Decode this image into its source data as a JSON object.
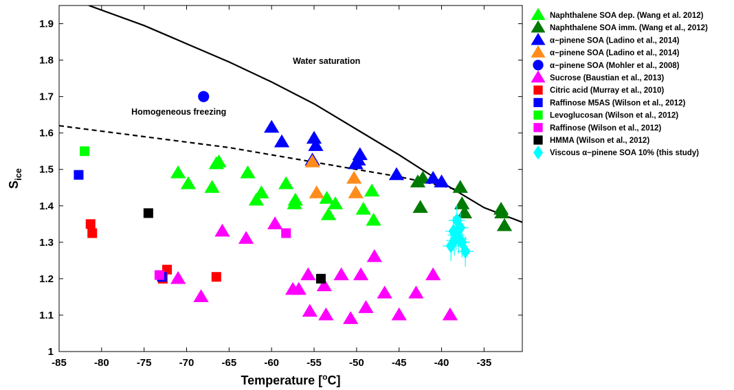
{
  "chart_data": {
    "type": "scatter",
    "xlabel": "Temperature [",
    "xlabel_unit": "o",
    "xlabel_end": "C]",
    "ylabel_main": "S",
    "ylabel_sub": "ice",
    "xlim": [
      -85,
      -30.5
    ],
    "ylim": [
      1.0,
      1.95
    ],
    "xticks": [
      "-85",
      "-80",
      "-75",
      "-70",
      "-65",
      "-60",
      "-55",
      "-50",
      "-45",
      "-40",
      "-35"
    ],
    "yticks": [
      "1",
      "1.1",
      "1.2",
      "1.3",
      "1.4",
      "1.5",
      "1.6",
      "1.7",
      "1.8",
      "1.9"
    ],
    "xtick_values": [
      -85,
      -80,
      -75,
      -70,
      -65,
      -60,
      -55,
      -50,
      -45,
      -40,
      -35
    ],
    "ytick_values": [
      1.0,
      1.1,
      1.2,
      1.3,
      1.4,
      1.5,
      1.6,
      1.7,
      1.8,
      1.9
    ],
    "grid": false,
    "legend_position": "outside-right",
    "annotations": [
      {
        "text": "Water saturation",
        "x": -57.5,
        "y": 1.79
      },
      {
        "text": "Homogeneous freezing",
        "x": -76.5,
        "y": 1.65
      }
    ],
    "lines": [
      {
        "name": "Water saturation",
        "style": "solid",
        "x": [
          -81.5,
          -75,
          -70,
          -65,
          -60,
          -55,
          -50,
          -45,
          -40,
          -35,
          -30.5
        ],
        "y": [
          1.95,
          1.895,
          1.845,
          1.795,
          1.74,
          1.68,
          1.61,
          1.54,
          1.465,
          1.395,
          1.355
        ]
      },
      {
        "name": "Homogeneous freezing",
        "style": "dashed",
        "x": [
          -85,
          -80,
          -75,
          -70,
          -65,
          -60,
          -55,
          -50,
          -45,
          -40,
          -37.5
        ],
        "y": [
          1.62,
          1.605,
          1.59,
          1.575,
          1.56,
          1.54,
          1.52,
          1.5,
          1.48,
          1.455,
          1.44
        ]
      }
    ],
    "series": [
      {
        "name": "Naphthalene SOA dep. (Wang et al. 2012)",
        "marker": "triangle",
        "color": "#00ff00",
        "x": [
          -71,
          -69.8,
          -67,
          -66.5,
          -66.2,
          -62.8,
          -61.8,
          -61.2,
          -58.3,
          -57.3,
          -57.2,
          -53.5,
          -53.3,
          -52.5,
          -49.2,
          -48.2,
          -48
        ],
        "y": [
          1.49,
          1.46,
          1.45,
          1.515,
          1.52,
          1.49,
          1.415,
          1.435,
          1.46,
          1.405,
          1.415,
          1.42,
          1.375,
          1.405,
          1.39,
          1.44,
          1.36
        ]
      },
      {
        "name": "Naphthalene SOA imm. (Wang et al., 2012)",
        "marker": "triangle",
        "color": "#007a00",
        "x": [
          -42.8,
          -42.5,
          -42.2,
          -37.8,
          -37.6,
          -37.3,
          -33,
          -32.9,
          -32.6
        ],
        "y": [
          1.465,
          1.395,
          1.475,
          1.45,
          1.405,
          1.38,
          1.39,
          1.38,
          1.345
        ]
      },
      {
        "name": "α−pinene SOA (Ladino et al., 2014)",
        "marker": "triangle",
        "color": "#0000ff",
        "x": [
          -60,
          -58.8,
          -55,
          -54.8,
          -55.2,
          -50.1,
          -49.8,
          -49.6,
          -45.3,
          -41,
          -40
        ],
        "y": [
          1.615,
          1.575,
          1.585,
          1.565,
          1.525,
          1.515,
          1.525,
          1.54,
          1.485,
          1.475,
          1.465
        ]
      },
      {
        "name": "α−pinene SOA (Ladino et al., 2014)",
        "marker": "triangle",
        "color": "#ff8c1a",
        "x": [
          -55.2,
          -54.7,
          -50.3,
          -50.1
        ],
        "y": [
          1.52,
          1.435,
          1.475,
          1.435
        ]
      },
      {
        "name": "α−pinene SOA (Mohler et al., 2008)",
        "marker": "circle",
        "color": "#0000ff",
        "x": [
          -68
        ],
        "y": [
          1.7
        ]
      },
      {
        "name": "Sucrose (Baustian et al., 2013)",
        "marker": "triangle",
        "color": "#ff00ff",
        "x": [
          -71,
          -68.3,
          -65.8,
          -63,
          -59.6,
          -57.5,
          -56.8,
          -55.7,
          -55.5,
          -53.8,
          -53.6,
          -51.8,
          -50.7,
          -49.5,
          -48.9,
          -47.9,
          -46.7,
          -45,
          -43,
          -41,
          -39
        ],
        "y": [
          1.2,
          1.15,
          1.33,
          1.31,
          1.35,
          1.17,
          1.17,
          1.21,
          1.11,
          1.18,
          1.1,
          1.21,
          1.09,
          1.21,
          1.12,
          1.26,
          1.16,
          1.1,
          1.16,
          1.21,
          1.1
        ]
      },
      {
        "name": "Citric acid (Murray et al., 2010)",
        "marker": "square",
        "color": "#ff0000",
        "x": [
          -81.3,
          -81.1,
          -72.8,
          -72.3,
          -66.5
        ],
        "y": [
          1.35,
          1.325,
          1.2,
          1.225,
          1.205
        ]
      },
      {
        "name": "Raffinose M5AS (Wilson et al., 2012)",
        "marker": "square",
        "color": "#0000ff",
        "x": [
          -82.7,
          -72.9
        ],
        "y": [
          1.485,
          1.205
        ]
      },
      {
        "name": "Levoglucosan (Wilson et al., 2012)",
        "marker": "square",
        "color": "#00ff00",
        "x": [
          -82
        ],
        "y": [
          1.55
        ]
      },
      {
        "name": "Raffinose (Wilson et al., 2012)",
        "marker": "square",
        "color": "#ff00ff",
        "x": [
          -73.2,
          -58.3
        ],
        "y": [
          1.21,
          1.325
        ]
      },
      {
        "name": "HMMA (Wilson et al., 2012)",
        "marker": "square",
        "color": "#000000",
        "x": [
          -74.5,
          -54.2
        ],
        "y": [
          1.38,
          1.2
        ]
      },
      {
        "name": "Viscous α−pinene SOA 10% (this study)",
        "marker": "diamond",
        "color": "#00ffff",
        "x": [
          -38.9,
          -38.6,
          -38.5,
          -38.3,
          -38.2,
          -38,
          -37.8,
          -37.6,
          -37.2
        ],
        "y": [
          1.29,
          1.33,
          1.305,
          1.32,
          1.36,
          1.31,
          1.34,
          1.3,
          1.275
        ]
      }
    ]
  }
}
